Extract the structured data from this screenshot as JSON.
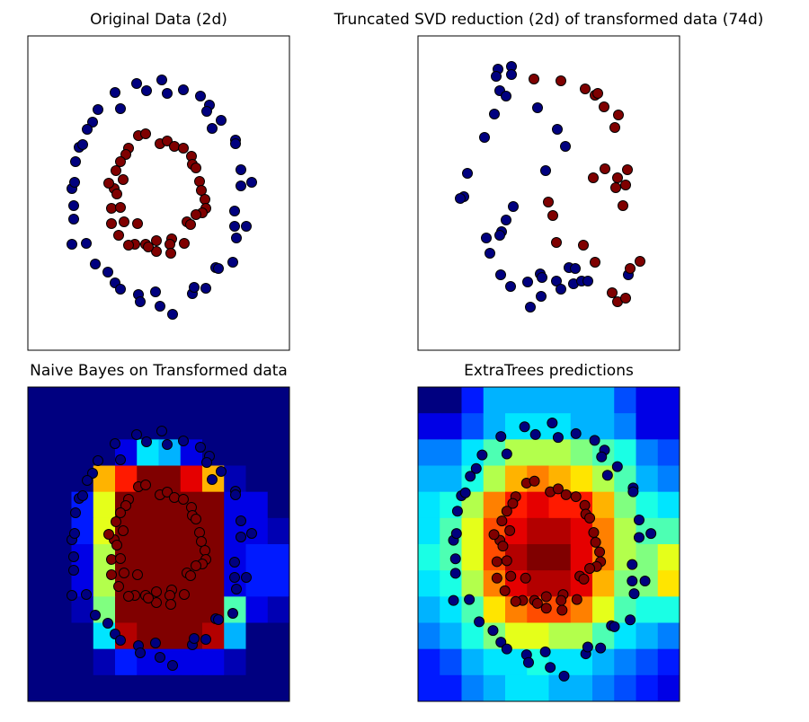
{
  "chart_data": [
    {
      "type": "scatter",
      "title": "Original Data (2d)",
      "xlim": [
        0,
        291
      ],
      "ylim": [
        0,
        350
      ],
      "series": [
        {
          "color": "#00007f",
          "x": [
            149,
            121,
            97,
            132,
            155,
            173,
            192,
            202,
            199,
            78,
            103,
            72,
            66,
            215,
            205,
            231,
            231,
            57,
            61,
            53,
            49,
            52,
            237,
            237,
            249,
            51,
            51,
            230,
            243,
            230,
            232,
            49,
            65,
            75,
            89,
            228,
            209,
            212,
            97,
            103,
            123,
            142,
            125,
            183,
            185,
            198,
            147,
            161
          ],
          "y": [
            301,
            297,
            287,
            289,
            286,
            290,
            283,
            273,
            266,
            268,
            269,
            254,
            246,
            256,
            247,
            234,
            230,
            226,
            229,
            210,
            180,
            187,
            201,
            183,
            187,
            161,
            146,
            155,
            138,
            138,
            125,
            118,
            119,
            96,
            87,
            98,
            92,
            91,
            75,
            68,
            62,
            65,
            54,
            63,
            70,
            69,
            49,
            40
          ]
        },
        {
          "color": "#7f0000",
          "x": [
            123,
            131,
            112,
            147,
            155,
            163,
            173,
            109,
            103,
            98,
            182,
            183,
            187,
            106,
            96,
            99,
            191,
            193,
            197,
            198,
            194,
            93,
            103,
            93,
            107,
            122,
            187,
            177,
            181,
            101,
            119,
            131,
            143,
            160,
            158,
            174,
            143,
            159,
            112,
            90,
            134
          ],
          "y": [
            239,
            241,
            225,
            230,
            233,
            227,
            225,
            218,
            210,
            200,
            216,
            207,
            203,
            190,
            180,
            174,
            188,
            178,
            168,
            158,
            153,
            158,
            159,
            141,
            143,
            141,
            151,
            143,
            140,
            128,
            118,
            118,
            122,
            124,
            118,
            119,
            110,
            108,
            117,
            186,
            115
          ]
        }
      ]
    },
    {
      "type": "scatter",
      "title": "Truncated SVD reduction (2d) of transformed data (74d)",
      "xlim": [
        0,
        291
      ],
      "ylim": [
        0,
        350
      ],
      "series": [
        {
          "color": "#00007f",
          "x": [
            89,
            104,
            87,
            104,
            91,
            98,
            85,
            74,
            133,
            155,
            164,
            55,
            51,
            47,
            142,
            106,
            98,
            93,
            76,
            91,
            80,
            92,
            103,
            122,
            136,
            138,
            137,
            125,
            154,
            159,
            168,
            175,
            173,
            182,
            189,
            234
          ],
          "y": [
            313,
            316,
            305,
            307,
            289,
            283,
            263,
            237,
            270,
            246,
            227,
            197,
            171,
            169,
            200,
            160,
            145,
            132,
            125,
            128,
            108,
            84,
            71,
            76,
            85,
            81,
            60,
            48,
            77,
            68,
            92,
            91,
            74,
            77,
            77,
            84
          ]
        },
        {
          "color": "#7f0000",
          "x": [
            129,
            159,
            186,
            197,
            200,
            207,
            223,
            219,
            208,
            233,
            222,
            195,
            220,
            231,
            228,
            145,
            150,
            154,
            184,
            197,
            247,
            236,
            216,
            222,
            231
          ],
          "y": [
            302,
            300,
            291,
            284,
            286,
            271,
            262,
            248,
            202,
            201,
            192,
            192,
            181,
            184,
            161,
            165,
            150,
            120,
            117,
            98,
            99,
            91,
            64,
            54,
            58
          ]
        }
      ]
    },
    {
      "type": "heatmap",
      "title": "Naive Bayes on Transformed data",
      "xlim": [
        0,
        291
      ],
      "ylim": [
        0,
        350
      ],
      "colormap": "jet",
      "z": [
        [
          0,
          0,
          0,
          0,
          0,
          0,
          0,
          0,
          0,
          0,
          0,
          0
        ],
        [
          0,
          0,
          0,
          0,
          0,
          0,
          0,
          0,
          0,
          0,
          0,
          0
        ],
        [
          0,
          0,
          0,
          0,
          0.1,
          0.35,
          0.3,
          0.1,
          0,
          0,
          0,
          0
        ],
        [
          0,
          0,
          0,
          0.7,
          0.85,
          1,
          1,
          0.9,
          0.7,
          0.05,
          0,
          0
        ],
        [
          0,
          0,
          0.15,
          0.6,
          1,
          1,
          1,
          1,
          1,
          0.1,
          0.1,
          0
        ],
        [
          0,
          0,
          0.15,
          0.6,
          1,
          1,
          1,
          1,
          1,
          0.1,
          0.1,
          0.05
        ],
        [
          0,
          0,
          0.1,
          0.55,
          1,
          1,
          1,
          1,
          1,
          0.1,
          0.15,
          0.15
        ],
        [
          0,
          0,
          0.1,
          0.55,
          1,
          1,
          1,
          1,
          1,
          0.1,
          0.15,
          0.15
        ],
        [
          0,
          0,
          0.05,
          0.5,
          1,
          1,
          1,
          1,
          1,
          0.45,
          0.1,
          0.05
        ],
        [
          0,
          0,
          0,
          0.35,
          0.95,
          1,
          1,
          1,
          0.95,
          0.3,
          0,
          0
        ],
        [
          0,
          0,
          0,
          0.05,
          0.15,
          0.1,
          0.1,
          0.1,
          0.1,
          0.05,
          0,
          0
        ],
        [
          0,
          0,
          0,
          0,
          0,
          0,
          0,
          0,
          0,
          0,
          0,
          0
        ]
      ],
      "series": [
        {
          "color": "#00007f",
          "x": [
            149,
            121,
            97,
            132,
            155,
            173,
            192,
            202,
            199,
            78,
            103,
            72,
            66,
            215,
            205,
            231,
            231,
            57,
            61,
            53,
            49,
            52,
            237,
            237,
            249,
            51,
            51,
            230,
            243,
            230,
            232,
            49,
            65,
            75,
            89,
            228,
            209,
            212,
            97,
            103,
            123,
            142,
            125,
            183,
            185,
            198,
            147,
            161
          ],
          "y": [
            301,
            297,
            287,
            289,
            286,
            290,
            283,
            273,
            266,
            268,
            269,
            254,
            246,
            256,
            247,
            234,
            230,
            226,
            229,
            210,
            180,
            187,
            201,
            183,
            187,
            161,
            146,
            155,
            138,
            138,
            125,
            118,
            119,
            96,
            87,
            98,
            92,
            91,
            75,
            68,
            62,
            65,
            54,
            63,
            70,
            69,
            49,
            40
          ]
        },
        {
          "color": "#7f0000",
          "x": [
            123,
            131,
            112,
            147,
            155,
            163,
            173,
            109,
            103,
            98,
            182,
            183,
            187,
            106,
            96,
            99,
            191,
            193,
            197,
            198,
            194,
            93,
            103,
            93,
            107,
            122,
            187,
            177,
            181,
            101,
            119,
            131,
            143,
            160,
            158,
            174,
            143,
            159,
            112,
            90,
            134
          ],
          "y": [
            239,
            241,
            225,
            230,
            233,
            227,
            225,
            218,
            210,
            200,
            216,
            207,
            203,
            190,
            180,
            174,
            188,
            178,
            168,
            158,
            153,
            158,
            159,
            141,
            143,
            141,
            151,
            143,
            140,
            128,
            118,
            118,
            122,
            124,
            118,
            119,
            110,
            108,
            117,
            186,
            115
          ]
        }
      ]
    },
    {
      "type": "heatmap",
      "title": "ExtraTrees predictions",
      "xlim": [
        13,
        278
      ],
      "ylim": [
        14,
        338
      ],
      "colormap": "jet",
      "z": [
        [
          0,
          0,
          0.15,
          0.3,
          0.3,
          0.3,
          0.3,
          0.3,
          0.3,
          0.2,
          0.1,
          0.1
        ],
        [
          0.1,
          0.1,
          0.2,
          0.3,
          0.35,
          0.35,
          0.35,
          0.3,
          0.3,
          0.25,
          0.1,
          0.1
        ],
        [
          0.25,
          0.25,
          0.35,
          0.45,
          0.55,
          0.55,
          0.55,
          0.5,
          0.45,
          0.4,
          0.25,
          0.2
        ],
        [
          0.3,
          0.3,
          0.4,
          0.55,
          0.7,
          0.75,
          0.7,
          0.65,
          0.55,
          0.45,
          0.3,
          0.25
        ],
        [
          0.35,
          0.4,
          0.55,
          0.75,
          0.85,
          0.9,
          0.85,
          0.85,
          0.7,
          0.5,
          0.4,
          0.35
        ],
        [
          0.35,
          0.45,
          0.6,
          0.8,
          0.9,
          0.95,
          0.95,
          0.9,
          0.75,
          0.55,
          0.45,
          0.45
        ],
        [
          0.4,
          0.45,
          0.6,
          0.8,
          0.95,
          1,
          1,
          0.9,
          0.75,
          0.55,
          0.5,
          0.6
        ],
        [
          0.35,
          0.4,
          0.55,
          0.75,
          0.9,
          0.95,
          0.95,
          0.9,
          0.7,
          0.5,
          0.5,
          0.65
        ],
        [
          0.3,
          0.35,
          0.45,
          0.65,
          0.75,
          0.8,
          0.8,
          0.75,
          0.6,
          0.45,
          0.4,
          0.4
        ],
        [
          0.25,
          0.3,
          0.4,
          0.5,
          0.6,
          0.6,
          0.55,
          0.55,
          0.45,
          0.35,
          0.3,
          0.25
        ],
        [
          0.15,
          0.2,
          0.3,
          0.35,
          0.35,
          0.4,
          0.35,
          0.35,
          0.3,
          0.25,
          0.2,
          0.15
        ],
        [
          0.15,
          0.15,
          0.25,
          0.3,
          0.35,
          0.35,
          0.3,
          0.3,
          0.25,
          0.2,
          0.15,
          0.1
        ]
      ],
      "series": [
        {
          "color": "#00007f",
          "x": [
            149,
            121,
            97,
            132,
            155,
            173,
            192,
            202,
            199,
            78,
            103,
            72,
            66,
            215,
            205,
            231,
            231,
            57,
            61,
            53,
            49,
            52,
            237,
            237,
            249,
            51,
            51,
            230,
            243,
            230,
            232,
            49,
            65,
            75,
            89,
            228,
            209,
            212,
            97,
            103,
            123,
            142,
            125,
            183,
            185,
            198,
            147,
            161
          ],
          "y": [
            301,
            297,
            287,
            289,
            286,
            290,
            283,
            273,
            266,
            268,
            269,
            254,
            246,
            256,
            247,
            234,
            230,
            226,
            229,
            210,
            180,
            187,
            201,
            183,
            187,
            161,
            146,
            155,
            138,
            138,
            125,
            118,
            119,
            96,
            87,
            98,
            92,
            91,
            75,
            68,
            62,
            65,
            54,
            63,
            70,
            69,
            49,
            40
          ]
        },
        {
          "color": "#7f0000",
          "x": [
            123,
            131,
            112,
            147,
            155,
            163,
            173,
            109,
            103,
            98,
            182,
            183,
            187,
            106,
            96,
            99,
            191,
            193,
            197,
            198,
            194,
            93,
            103,
            93,
            107,
            122,
            187,
            177,
            181,
            101,
            119,
            131,
            143,
            160,
            158,
            174,
            143,
            159,
            112,
            90,
            134
          ],
          "y": [
            239,
            241,
            225,
            230,
            233,
            227,
            225,
            218,
            210,
            200,
            216,
            207,
            203,
            190,
            180,
            174,
            188,
            178,
            168,
            158,
            153,
            158,
            159,
            141,
            143,
            141,
            151,
            143,
            140,
            128,
            118,
            118,
            122,
            124,
            118,
            119,
            110,
            108,
            117,
            186,
            115
          ]
        }
      ]
    }
  ]
}
